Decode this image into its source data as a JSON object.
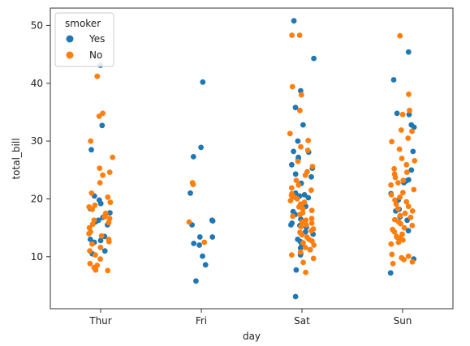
{
  "chart_data": {
    "type": "scatter",
    "title": "",
    "xlabel": "day",
    "ylabel": "total_bill",
    "categories": [
      "Thur",
      "Fri",
      "Sat",
      "Sun"
    ],
    "ylim": [
      1,
      53
    ],
    "yticks": [
      10,
      20,
      30,
      40,
      50
    ],
    "grid": false,
    "legend": {
      "title": "smoker",
      "placement": "top-left",
      "entries": [
        "Yes",
        "No"
      ]
    },
    "series": [
      {
        "name": "Yes",
        "color": "#1f77b4",
        "points": [
          {
            "x": "Thur",
            "y": 43.1
          },
          {
            "x": "Thur",
            "y": 32.7
          },
          {
            "x": "Thur",
            "y": 28.5
          },
          {
            "x": "Thur",
            "y": 20.5
          },
          {
            "x": "Thur",
            "y": 19.8
          },
          {
            "x": "Thur",
            "y": 19.2
          },
          {
            "x": "Thur",
            "y": 18.3
          },
          {
            "x": "Thur",
            "y": 17.6
          },
          {
            "x": "Thur",
            "y": 16.8
          },
          {
            "x": "Thur",
            "y": 16.3
          },
          {
            "x": "Thur",
            "y": 16.0
          },
          {
            "x": "Thur",
            "y": 15.5
          },
          {
            "x": "Thur",
            "y": 13.5
          },
          {
            "x": "Thur",
            "y": 13.0
          },
          {
            "x": "Thur",
            "y": 12.8
          },
          {
            "x": "Thur",
            "y": 12.5
          },
          {
            "x": "Thur",
            "y": 11.0
          },
          {
            "x": "Thur",
            "y": 10.5
          },
          {
            "x": "Fri",
            "y": 40.2
          },
          {
            "x": "Fri",
            "y": 28.9
          },
          {
            "x": "Fri",
            "y": 27.3
          },
          {
            "x": "Fri",
            "y": 21.0
          },
          {
            "x": "Fri",
            "y": 16.3
          },
          {
            "x": "Fri",
            "y": 16.2
          },
          {
            "x": "Fri",
            "y": 15.5
          },
          {
            "x": "Fri",
            "y": 13.4
          },
          {
            "x": "Fri",
            "y": 13.4
          },
          {
            "x": "Fri",
            "y": 12.3
          },
          {
            "x": "Fri",
            "y": 12.0
          },
          {
            "x": "Fri",
            "y": 10.1
          },
          {
            "x": "Fri",
            "y": 8.6
          },
          {
            "x": "Fri",
            "y": 5.8
          },
          {
            "x": "Sat",
            "y": 50.8
          },
          {
            "x": "Sat",
            "y": 44.3
          },
          {
            "x": "Sat",
            "y": 38.7
          },
          {
            "x": "Sat",
            "y": 35.8
          },
          {
            "x": "Sat",
            "y": 32.8
          },
          {
            "x": "Sat",
            "y": 30.0
          },
          {
            "x": "Sat",
            "y": 28.2
          },
          {
            "x": "Sat",
            "y": 28.1
          },
          {
            "x": "Sat",
            "y": 27.2
          },
          {
            "x": "Sat",
            "y": 26.9
          },
          {
            "x": "Sat",
            "y": 25.9
          },
          {
            "x": "Sat",
            "y": 25.3
          },
          {
            "x": "Sat",
            "y": 24.3
          },
          {
            "x": "Sat",
            "y": 23.8
          },
          {
            "x": "Sat",
            "y": 22.7
          },
          {
            "x": "Sat",
            "y": 21.0
          },
          {
            "x": "Sat",
            "y": 20.7
          },
          {
            "x": "Sat",
            "y": 20.5
          },
          {
            "x": "Sat",
            "y": 20.2
          },
          {
            "x": "Sat",
            "y": 18.7
          },
          {
            "x": "Sat",
            "y": 17.8
          },
          {
            "x": "Sat",
            "y": 17.3
          },
          {
            "x": "Sat",
            "y": 16.5
          },
          {
            "x": "Sat",
            "y": 15.8
          },
          {
            "x": "Sat",
            "y": 15.5
          },
          {
            "x": "Sat",
            "y": 15.4
          },
          {
            "x": "Sat",
            "y": 15.1
          },
          {
            "x": "Sat",
            "y": 14.3
          },
          {
            "x": "Sat",
            "y": 13.9
          },
          {
            "x": "Sat",
            "y": 13.0
          },
          {
            "x": "Sat",
            "y": 12.6
          },
          {
            "x": "Sat",
            "y": 12.1
          },
          {
            "x": "Sat",
            "y": 11.5
          },
          {
            "x": "Sat",
            "y": 11.2
          },
          {
            "x": "Sat",
            "y": 10.6
          },
          {
            "x": "Sat",
            "y": 10.3
          },
          {
            "x": "Sat",
            "y": 7.7
          },
          {
            "x": "Sat",
            "y": 3.1
          },
          {
            "x": "Sun",
            "y": 45.4
          },
          {
            "x": "Sun",
            "y": 40.6
          },
          {
            "x": "Sun",
            "y": 34.8
          },
          {
            "x": "Sun",
            "y": 34.6
          },
          {
            "x": "Sun",
            "y": 32.8
          },
          {
            "x": "Sun",
            "y": 32.4
          },
          {
            "x": "Sun",
            "y": 28.2
          },
          {
            "x": "Sun",
            "y": 25.0
          },
          {
            "x": "Sun",
            "y": 23.3
          },
          {
            "x": "Sun",
            "y": 23.1
          },
          {
            "x": "Sun",
            "y": 22.8
          },
          {
            "x": "Sun",
            "y": 20.9
          },
          {
            "x": "Sun",
            "y": 19.8
          },
          {
            "x": "Sun",
            "y": 18.2
          },
          {
            "x": "Sun",
            "y": 17.9
          },
          {
            "x": "Sun",
            "y": 16.9
          },
          {
            "x": "Sun",
            "y": 16.3
          },
          {
            "x": "Sun",
            "y": 14.5
          },
          {
            "x": "Sun",
            "y": 13.4
          },
          {
            "x": "Sun",
            "y": 9.6
          },
          {
            "x": "Sun",
            "y": 7.2
          }
        ]
      },
      {
        "name": "No",
        "color": "#ff7f0e",
        "points": [
          {
            "x": "Thur",
            "y": 41.2
          },
          {
            "x": "Thur",
            "y": 34.8
          },
          {
            "x": "Thur",
            "y": 34.3
          },
          {
            "x": "Thur",
            "y": 30.0
          },
          {
            "x": "Thur",
            "y": 27.2
          },
          {
            "x": "Thur",
            "y": 25.3
          },
          {
            "x": "Thur",
            "y": 24.6
          },
          {
            "x": "Thur",
            "y": 24.1
          },
          {
            "x": "Thur",
            "y": 22.8
          },
          {
            "x": "Thur",
            "y": 21.0
          },
          {
            "x": "Thur",
            "y": 20.3
          },
          {
            "x": "Thur",
            "y": 19.4
          },
          {
            "x": "Thur",
            "y": 18.9
          },
          {
            "x": "Thur",
            "y": 18.6
          },
          {
            "x": "Thur",
            "y": 18.2
          },
          {
            "x": "Thur",
            "y": 17.5
          },
          {
            "x": "Thur",
            "y": 17.2
          },
          {
            "x": "Thur",
            "y": 16.9
          },
          {
            "x": "Thur",
            "y": 16.6
          },
          {
            "x": "Thur",
            "y": 16.3
          },
          {
            "x": "Thur",
            "y": 15.9
          },
          {
            "x": "Thur",
            "y": 15.6
          },
          {
            "x": "Thur",
            "y": 15.0
          },
          {
            "x": "Thur",
            "y": 14.3
          },
          {
            "x": "Thur",
            "y": 14.0
          },
          {
            "x": "Thur",
            "y": 13.6
          },
          {
            "x": "Thur",
            "y": 13.0
          },
          {
            "x": "Thur",
            "y": 12.6
          },
          {
            "x": "Thur",
            "y": 12.2
          },
          {
            "x": "Thur",
            "y": 11.6
          },
          {
            "x": "Thur",
            "y": 11.0
          },
          {
            "x": "Thur",
            "y": 10.3
          },
          {
            "x": "Thur",
            "y": 9.6
          },
          {
            "x": "Thur",
            "y": 8.8
          },
          {
            "x": "Thur",
            "y": 8.5
          },
          {
            "x": "Thur",
            "y": 8.1
          },
          {
            "x": "Thur",
            "y": 7.7
          },
          {
            "x": "Thur",
            "y": 7.6
          },
          {
            "x": "Fri",
            "y": 22.8
          },
          {
            "x": "Fri",
            "y": 22.5
          },
          {
            "x": "Fri",
            "y": 16.0
          },
          {
            "x": "Fri",
            "y": 12.5
          },
          {
            "x": "Sat",
            "y": 48.3
          },
          {
            "x": "Sat",
            "y": 48.3
          },
          {
            "x": "Sat",
            "y": 39.4
          },
          {
            "x": "Sat",
            "y": 38.0
          },
          {
            "x": "Sat",
            "y": 35.3
          },
          {
            "x": "Sat",
            "y": 31.3
          },
          {
            "x": "Sat",
            "y": 30.1
          },
          {
            "x": "Sat",
            "y": 29.0
          },
          {
            "x": "Sat",
            "y": 28.4
          },
          {
            "x": "Sat",
            "y": 26.5
          },
          {
            "x": "Sat",
            "y": 25.6
          },
          {
            "x": "Sat",
            "y": 24.7
          },
          {
            "x": "Sat",
            "y": 24.1
          },
          {
            "x": "Sat",
            "y": 23.2
          },
          {
            "x": "Sat",
            "y": 22.4
          },
          {
            "x": "Sat",
            "y": 21.9
          },
          {
            "x": "Sat",
            "y": 21.5
          },
          {
            "x": "Sat",
            "y": 20.9
          },
          {
            "x": "Sat",
            "y": 20.6
          },
          {
            "x": "Sat",
            "y": 20.3
          },
          {
            "x": "Sat",
            "y": 20.0
          },
          {
            "x": "Sat",
            "y": 19.7
          },
          {
            "x": "Sat",
            "y": 19.4
          },
          {
            "x": "Sat",
            "y": 19.1
          },
          {
            "x": "Sat",
            "y": 18.6
          },
          {
            "x": "Sat",
            "y": 18.3
          },
          {
            "x": "Sat",
            "y": 18.0
          },
          {
            "x": "Sat",
            "y": 17.6
          },
          {
            "x": "Sat",
            "y": 17.3
          },
          {
            "x": "Sat",
            "y": 17.0
          },
          {
            "x": "Sat",
            "y": 16.6
          },
          {
            "x": "Sat",
            "y": 16.3
          },
          {
            "x": "Sat",
            "y": 16.0
          },
          {
            "x": "Sat",
            "y": 15.8
          },
          {
            "x": "Sat",
            "y": 15.5
          },
          {
            "x": "Sat",
            "y": 15.2
          },
          {
            "x": "Sat",
            "y": 14.8
          },
          {
            "x": "Sat",
            "y": 14.5
          },
          {
            "x": "Sat",
            "y": 14.2
          },
          {
            "x": "Sat",
            "y": 13.8
          },
          {
            "x": "Sat",
            "y": 13.4
          },
          {
            "x": "Sat",
            "y": 13.0
          },
          {
            "x": "Sat",
            "y": 12.7
          },
          {
            "x": "Sat",
            "y": 12.4
          },
          {
            "x": "Sat",
            "y": 12.0
          },
          {
            "x": "Sat",
            "y": 11.6
          },
          {
            "x": "Sat",
            "y": 11.2
          },
          {
            "x": "Sat",
            "y": 10.8
          },
          {
            "x": "Sat",
            "y": 10.3
          },
          {
            "x": "Sat",
            "y": 9.7
          },
          {
            "x": "Sat",
            "y": 9.0
          },
          {
            "x": "Sat",
            "y": 7.3
          },
          {
            "x": "Sun",
            "y": 48.2
          },
          {
            "x": "Sun",
            "y": 38.1
          },
          {
            "x": "Sun",
            "y": 35.3
          },
          {
            "x": "Sun",
            "y": 34.6
          },
          {
            "x": "Sun",
            "y": 31.9
          },
          {
            "x": "Sun",
            "y": 31.7
          },
          {
            "x": "Sun",
            "y": 30.5
          },
          {
            "x": "Sun",
            "y": 29.9
          },
          {
            "x": "Sun",
            "y": 28.6
          },
          {
            "x": "Sun",
            "y": 27.0
          },
          {
            "x": "Sun",
            "y": 26.6
          },
          {
            "x": "Sun",
            "y": 25.9
          },
          {
            "x": "Sun",
            "y": 25.2
          },
          {
            "x": "Sun",
            "y": 24.6
          },
          {
            "x": "Sun",
            "y": 24.3
          },
          {
            "x": "Sun",
            "y": 23.7
          },
          {
            "x": "Sun",
            "y": 23.2
          },
          {
            "x": "Sun",
            "y": 22.8
          },
          {
            "x": "Sun",
            "y": 22.4
          },
          {
            "x": "Sun",
            "y": 21.6
          },
          {
            "x": "Sun",
            "y": 21.1
          },
          {
            "x": "Sun",
            "y": 20.7
          },
          {
            "x": "Sun",
            "y": 20.3
          },
          {
            "x": "Sun",
            "y": 19.8
          },
          {
            "x": "Sun",
            "y": 19.5
          },
          {
            "x": "Sun",
            "y": 19.1
          },
          {
            "x": "Sun",
            "y": 18.7
          },
          {
            "x": "Sun",
            "y": 18.3
          },
          {
            "x": "Sun",
            "y": 17.9
          },
          {
            "x": "Sun",
            "y": 17.5
          },
          {
            "x": "Sun",
            "y": 17.1
          },
          {
            "x": "Sun",
            "y": 16.8
          },
          {
            "x": "Sun",
            "y": 16.4
          },
          {
            "x": "Sun",
            "y": 16.0
          },
          {
            "x": "Sun",
            "y": 15.7
          },
          {
            "x": "Sun",
            "y": 15.4
          },
          {
            "x": "Sun",
            "y": 15.0
          },
          {
            "x": "Sun",
            "y": 14.7
          },
          {
            "x": "Sun",
            "y": 14.3
          },
          {
            "x": "Sun",
            "y": 13.9
          },
          {
            "x": "Sun",
            "y": 13.5
          },
          {
            "x": "Sun",
            "y": 13.2
          },
          {
            "x": "Sun",
            "y": 12.9
          },
          {
            "x": "Sun",
            "y": 12.5
          },
          {
            "x": "Sun",
            "y": 12.2
          },
          {
            "x": "Sun",
            "y": 10.4
          },
          {
            "x": "Sun",
            "y": 10.1
          },
          {
            "x": "Sun",
            "y": 9.8
          },
          {
            "x": "Sun",
            "y": 9.5
          },
          {
            "x": "Sun",
            "y": 9.1
          },
          {
            "x": "Sun",
            "y": 8.8
          }
        ]
      }
    ]
  }
}
